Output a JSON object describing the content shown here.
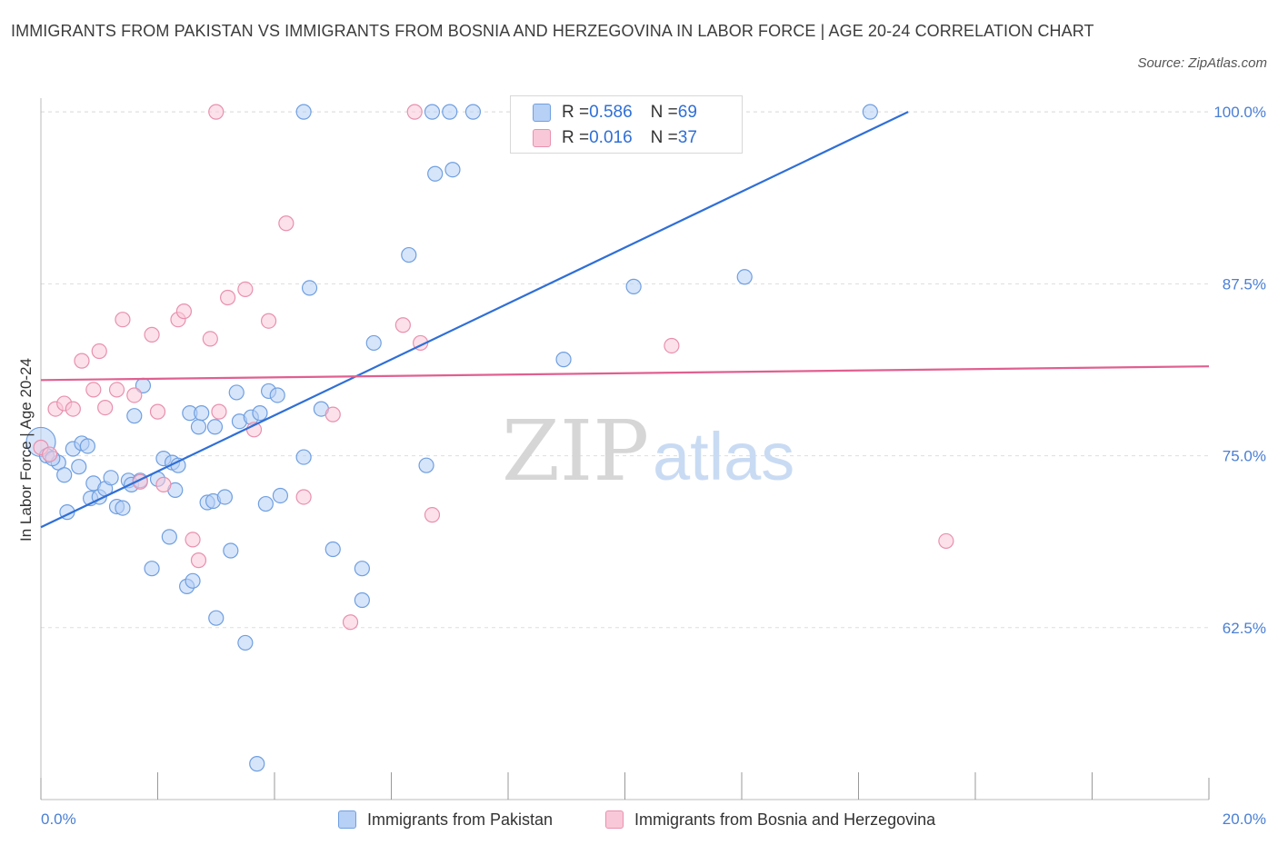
{
  "title": "IMMIGRANTS FROM PAKISTAN VS IMMIGRANTS FROM BOSNIA AND HERZEGOVINA IN LABOR FORCE | AGE 20-24 CORRELATION CHART",
  "source": "Source: ZipAtlas.com",
  "watermark": {
    "zip": "ZIP",
    "atlas": "atlas"
  },
  "legend": {
    "rows": [
      {
        "r_label": "R = ",
        "r_value": "0.586",
        "n_label": "N = ",
        "n_value": "69"
      },
      {
        "r_label": "R = ",
        "r_value": "0.016",
        "n_label": "N = ",
        "n_value": "37"
      }
    ]
  },
  "colors": {
    "pakistan_fill": "#b7d0f5",
    "pakistan_stroke": "#6f9fe0",
    "pakistan_line": "#2f6fd6",
    "bosnia_fill": "#f9c8d8",
    "bosnia_stroke": "#e890ae",
    "bosnia_line": "#e0608f",
    "grid": "#dddddd",
    "axis_text": "#4a7fd4"
  },
  "chart_data": {
    "type": "scatter",
    "title": "IMMIGRANTS FROM PAKISTAN VS IMMIGRANTS FROM BOSNIA AND HERZEGOVINA IN LABOR FORCE | AGE 20-24 CORRELATION CHART",
    "xlabel": "",
    "ylabel": "In Labor Force | Age 20-24",
    "xlim": [
      0,
      20
    ],
    "ylim": [
      50,
      101
    ],
    "x_tick_labels": [
      "0.0%",
      "20.0%"
    ],
    "y_ticks": [
      62.5,
      75.0,
      87.5,
      100.0
    ],
    "y_tick_labels": [
      "62.5%",
      "75.0%",
      "87.5%",
      "100.0%"
    ],
    "grid": true,
    "legend_position": "top-center",
    "series": [
      {
        "name": "Immigrants from Pakistan",
        "color": "#6f9fe0",
        "trend": {
          "x": [
            0,
            14.85
          ],
          "y": [
            69.8,
            100
          ]
        },
        "points": [
          [
            0.0,
            76.0
          ],
          [
            0.1,
            75.0
          ],
          [
            0.3,
            74.5
          ],
          [
            0.4,
            73.6
          ],
          [
            0.45,
            70.9
          ],
          [
            0.55,
            75.5
          ],
          [
            0.65,
            74.2
          ],
          [
            0.7,
            75.9
          ],
          [
            0.8,
            75.7
          ],
          [
            0.85,
            71.9
          ],
          [
            0.9,
            73.0
          ],
          [
            1.0,
            72.0
          ],
          [
            1.1,
            72.6
          ],
          [
            1.2,
            73.4
          ],
          [
            1.3,
            71.3
          ],
          [
            1.4,
            71.2
          ],
          [
            1.5,
            73.2
          ],
          [
            1.55,
            72.9
          ],
          [
            1.6,
            77.9
          ],
          [
            1.7,
            73.2
          ],
          [
            1.75,
            80.1
          ],
          [
            1.9,
            66.8
          ],
          [
            2.0,
            73.3
          ],
          [
            2.1,
            74.8
          ],
          [
            2.2,
            69.1
          ],
          [
            2.25,
            74.5
          ],
          [
            2.35,
            74.3
          ],
          [
            2.5,
            65.5
          ],
          [
            2.55,
            78.1
          ],
          [
            2.6,
            65.9
          ],
          [
            2.7,
            77.1
          ],
          [
            2.75,
            78.1
          ],
          [
            2.85,
            71.6
          ],
          [
            2.95,
            71.7
          ],
          [
            2.98,
            77.1
          ],
          [
            3.0,
            63.2
          ],
          [
            3.15,
            72.0
          ],
          [
            3.25,
            68.1
          ],
          [
            3.35,
            79.6
          ],
          [
            3.4,
            77.5
          ],
          [
            3.5,
            61.4
          ],
          [
            3.6,
            77.8
          ],
          [
            3.7,
            52.6
          ],
          [
            3.75,
            78.1
          ],
          [
            3.85,
            71.5
          ],
          [
            3.9,
            79.7
          ],
          [
            4.05,
            79.4
          ],
          [
            4.1,
            72.1
          ],
          [
            4.5,
            74.9
          ],
          [
            4.6,
            87.2
          ],
          [
            4.8,
            78.4
          ],
          [
            5.0,
            68.2
          ],
          [
            5.5,
            66.8
          ],
          [
            5.5,
            64.5
          ],
          [
            5.7,
            83.2
          ],
          [
            6.3,
            89.6
          ],
          [
            6.6,
            74.3
          ],
          [
            6.75,
            95.5
          ],
          [
            7.05,
            95.8
          ],
          [
            8.95,
            82.0
          ],
          [
            10.15,
            87.3
          ],
          [
            12.05,
            88.0
          ],
          [
            4.5,
            100.0
          ],
          [
            6.7,
            100.0
          ],
          [
            7.0,
            100.0
          ],
          [
            7.4,
            100.0
          ],
          [
            14.2,
            100.0
          ],
          [
            0.2,
            74.8
          ],
          [
            2.3,
            72.5
          ]
        ]
      },
      {
        "name": "Immigrants from Bosnia and Herzegovina",
        "color": "#e890ae",
        "trend": {
          "x": [
            0,
            20
          ],
          "y": [
            80.5,
            81.5
          ]
        },
        "points": [
          [
            0.0,
            75.6
          ],
          [
            0.15,
            75.1
          ],
          [
            0.25,
            78.4
          ],
          [
            0.4,
            78.8
          ],
          [
            0.55,
            78.4
          ],
          [
            0.7,
            81.9
          ],
          [
            0.9,
            79.8
          ],
          [
            1.0,
            82.6
          ],
          [
            1.1,
            78.5
          ],
          [
            1.3,
            79.8
          ],
          [
            1.4,
            84.9
          ],
          [
            1.6,
            79.4
          ],
          [
            1.7,
            73.1
          ],
          [
            1.9,
            83.8
          ],
          [
            2.0,
            78.2
          ],
          [
            2.1,
            72.9
          ],
          [
            2.35,
            84.9
          ],
          [
            2.45,
            85.5
          ],
          [
            2.6,
            68.9
          ],
          [
            2.7,
            67.4
          ],
          [
            2.9,
            83.5
          ],
          [
            3.05,
            78.2
          ],
          [
            3.2,
            86.5
          ],
          [
            3.5,
            87.1
          ],
          [
            3.65,
            76.9
          ],
          [
            3.9,
            84.8
          ],
          [
            4.2,
            91.9
          ],
          [
            4.5,
            72.0
          ],
          [
            5.0,
            78.0
          ],
          [
            5.3,
            62.9
          ],
          [
            6.2,
            84.5
          ],
          [
            6.5,
            83.2
          ],
          [
            6.7,
            70.7
          ],
          [
            10.8,
            83.0
          ],
          [
            15.5,
            68.8
          ],
          [
            3.0,
            100.0
          ],
          [
            6.4,
            100.0
          ]
        ]
      }
    ]
  },
  "bottom_legend": [
    {
      "label": "Immigrants from Pakistan"
    },
    {
      "label": "Immigrants from Bosnia and Herzegovina"
    }
  ]
}
